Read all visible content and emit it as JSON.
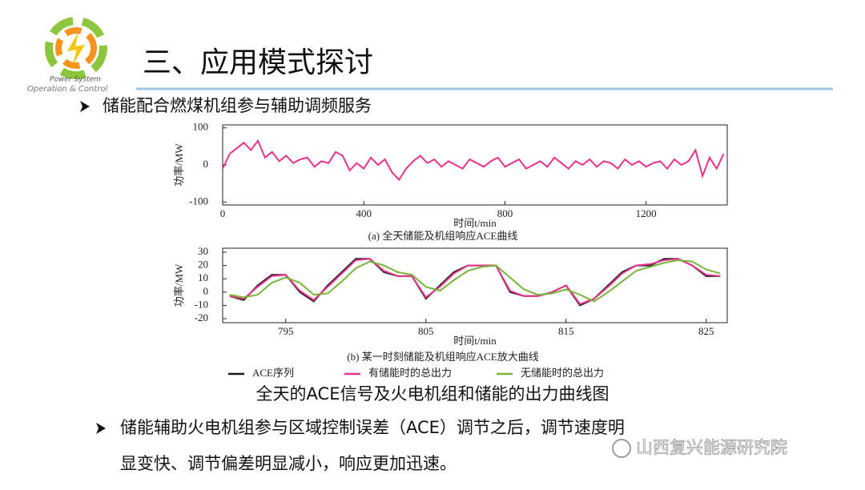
{
  "logo": {
    "line1": "Power System",
    "line2": "Operation & Control"
  },
  "title": "三、应用模式探讨",
  "bullet1": "储能配合燃煤机组参与辅助调频服务",
  "chart_data": [
    {
      "type": "line",
      "ylabel": "功率/MW",
      "xlabel": "时间t/min",
      "caption": "(a) 全天储能及机组响应ACE曲线",
      "x": [
        0,
        20,
        40,
        60,
        80,
        100,
        120,
        140,
        160,
        180,
        200,
        220,
        240,
        260,
        280,
        300,
        320,
        340,
        360,
        380,
        400,
        420,
        440,
        460,
        480,
        500,
        520,
        540,
        560,
        580,
        600,
        620,
        640,
        660,
        680,
        700,
        720,
        740,
        760,
        780,
        800,
        820,
        840,
        860,
        880,
        900,
        920,
        940,
        960,
        980,
        1000,
        1020,
        1040,
        1060,
        1080,
        1100,
        1120,
        1140,
        1160,
        1180,
        1200,
        1220,
        1240,
        1260,
        1280,
        1300,
        1320,
        1340,
        1360,
        1380,
        1400,
        1420
      ],
      "series": [
        {
          "color": "#e8338a",
          "values": [
            -10,
            30,
            45,
            60,
            40,
            65,
            20,
            35,
            10,
            25,
            5,
            15,
            20,
            -5,
            10,
            5,
            35,
            25,
            -15,
            5,
            -10,
            20,
            0,
            15,
            -20,
            -40,
            -10,
            10,
            25,
            5,
            15,
            -5,
            10,
            0,
            -10,
            15,
            5,
            -5,
            10,
            20,
            -5,
            5,
            15,
            -10,
            0,
            10,
            -5,
            20,
            5,
            -10,
            10,
            0,
            15,
            -5,
            10,
            5,
            -10,
            15,
            0,
            10,
            -5,
            5,
            10,
            -10,
            15,
            0,
            10,
            40,
            -30,
            20,
            -10,
            30
          ]
        }
      ],
      "xlim": [
        0,
        1430
      ],
      "ylim": [
        -108,
        108
      ],
      "xticks": [
        0,
        400,
        800,
        1200
      ],
      "yticks": [
        -100,
        0,
        100
      ]
    },
    {
      "type": "line",
      "ylabel": "功率/MW",
      "xlabel": "时间t/min",
      "caption": "(b) 某一时刻储能及机组响应ACE放大曲线",
      "x": [
        791,
        792,
        793,
        794,
        795,
        796,
        797,
        798,
        799,
        800,
        801,
        802,
        803,
        804,
        805,
        806,
        807,
        808,
        809,
        810,
        811,
        812,
        813,
        814,
        815,
        816,
        817,
        818,
        819,
        820,
        821,
        822,
        823,
        824,
        825,
        826
      ],
      "series": [
        {
          "name": "ACE序列",
          "color": "#1a1a1a",
          "values": [
            -3,
            -6,
            5,
            13,
            13,
            0,
            -7,
            5,
            15,
            25,
            25,
            15,
            12,
            12,
            -5,
            5,
            15,
            20,
            20,
            20,
            0,
            -3,
            -3,
            0,
            5,
            -10,
            -5,
            5,
            15,
            20,
            20,
            25,
            25,
            20,
            12,
            12
          ]
        },
        {
          "name": "有储能时的总出力",
          "color": "#e8338a",
          "values": [
            -3,
            -5,
            4,
            12,
            13,
            1,
            -6,
            4,
            14,
            24,
            25,
            16,
            12,
            12,
            -4,
            4,
            14,
            20,
            20,
            20,
            1,
            -3,
            -3,
            0,
            5,
            -9,
            -5,
            4,
            14,
            20,
            21,
            24,
            25,
            20,
            13,
            12
          ]
        },
        {
          "name": "无储能时的总出力",
          "color": "#7ab33a",
          "values": [
            -2,
            -4,
            -2,
            7,
            11,
            7,
            -2,
            -1,
            8,
            18,
            23,
            20,
            15,
            13,
            4,
            1,
            9,
            16,
            19,
            20,
            11,
            2,
            -2,
            -1,
            2,
            -2,
            -7,
            0,
            8,
            16,
            19,
            22,
            24,
            23,
            17,
            14
          ]
        }
      ],
      "xlim": [
        790.5,
        826.5
      ],
      "ylim": [
        -23,
        33
      ],
      "xticks": [
        795,
        805,
        815,
        825
      ],
      "yticks": [
        -20,
        -10,
        0,
        10,
        20,
        30
      ]
    }
  ],
  "figure_caption": "全天的ACE信号及火电机组和储能的出力曲线图",
  "bullet2": {
    "line1": "储能辅助火电机组参与区域控制误差（ACE）调节之后，调节速度明",
    "line2": "显变快、调节偏差明显减小，响应更加迅速。"
  },
  "watermark": "山西复兴能源研究院"
}
